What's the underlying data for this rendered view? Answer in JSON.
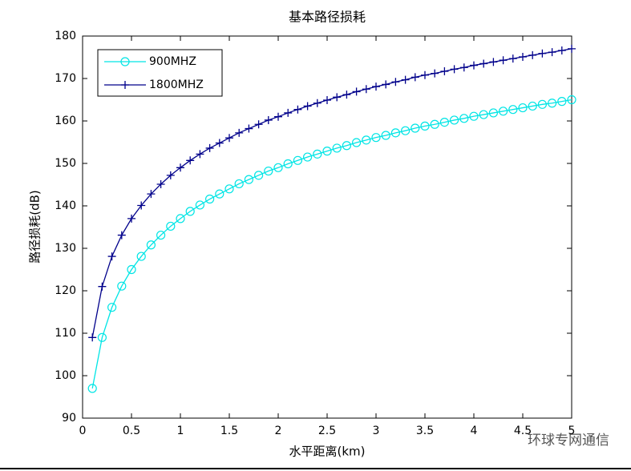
{
  "chart_data": {
    "type": "line",
    "title": "基本路径损耗",
    "xlabel": "水平距离(km)",
    "ylabel": "路径损耗(dB)",
    "x": [
      0.1,
      0.2,
      0.3,
      0.4,
      0.5,
      0.6,
      0.7,
      0.8,
      0.9,
      1,
      1.1,
      1.2,
      1.3,
      1.4,
      1.5,
      1.6,
      1.7,
      1.8,
      1.9,
      2,
      2.1,
      2.2,
      2.3,
      2.4,
      2.5,
      2.6,
      2.7,
      2.8,
      2.9,
      3,
      3.1,
      3.2,
      3.3,
      3.4,
      3.5,
      3.6,
      3.7,
      3.8,
      3.9,
      4,
      4.1,
      4.2,
      4.3,
      4.4,
      4.5,
      4.6,
      4.7,
      4.8,
      4.9,
      5
    ],
    "series": [
      {
        "name": "900MHZ",
        "color": "#00e5e5",
        "marker": "circle",
        "values": [
          97,
          109,
          116.1,
          121.1,
          125,
          128.1,
          130.8,
          133.1,
          135.2,
          137,
          138.7,
          140.2,
          141.6,
          142.8,
          144,
          145.2,
          146.2,
          147.2,
          148.2,
          149,
          149.9,
          150.7,
          151.5,
          152.2,
          152.9,
          153.6,
          154.2,
          154.9,
          155.5,
          156.1,
          156.6,
          157.2,
          157.7,
          158.3,
          158.8,
          159.2,
          159.7,
          160.2,
          160.6,
          161.1,
          161.5,
          161.9,
          162.3,
          162.7,
          163.1,
          163.5,
          163.9,
          164.2,
          164.6,
          165
        ]
      },
      {
        "name": "1800MHZ",
        "color": "#00008b",
        "marker": "plus",
        "values": [
          109,
          121,
          128.1,
          133.1,
          137,
          140.1,
          142.8,
          145.1,
          147.2,
          149,
          150.7,
          152.2,
          153.6,
          154.8,
          156,
          157.2,
          158.2,
          159.2,
          160.2,
          161,
          161.9,
          162.7,
          163.5,
          164.2,
          164.9,
          165.6,
          166.2,
          166.9,
          167.5,
          168.1,
          168.6,
          169.2,
          169.7,
          170.3,
          170.8,
          171.2,
          171.7,
          172.2,
          172.6,
          173.1,
          173.5,
          173.9,
          174.3,
          174.7,
          175.1,
          175.5,
          175.9,
          176.2,
          176.6,
          177
        ]
      }
    ],
    "xlim": [
      0,
      5
    ],
    "xticks": [
      0,
      0.5,
      1,
      1.5,
      2,
      2.5,
      3,
      3.5,
      4,
      4.5,
      5
    ],
    "ylim": [
      90,
      180
    ],
    "yticks": [
      90,
      100,
      110,
      120,
      130,
      140,
      150,
      160,
      170,
      180
    ],
    "grid": false,
    "legend": "upper left"
  },
  "watermark": "环球专网通信"
}
